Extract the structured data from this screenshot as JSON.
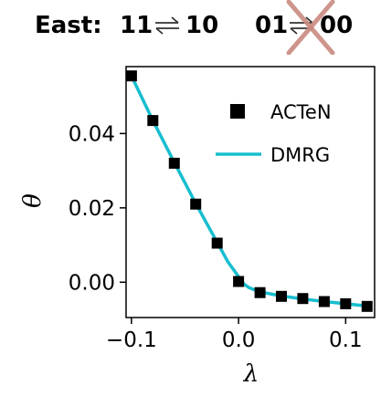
{
  "header": {
    "label": "East:",
    "state_a": "11",
    "state_b": "10",
    "state_c": "01",
    "state_d": "00",
    "arrow_icon": "exchange-arrows-icon",
    "cross_icon": "cross-out-icon",
    "cross_color": "#c98a80"
  },
  "chart_data": {
    "type": "line",
    "xlabel": "λ",
    "ylabel": "θ",
    "xlim": [
      -0.105,
      0.127
    ],
    "ylim": [
      -0.0095,
      0.058
    ],
    "xticks": [
      -0.1,
      0.0,
      0.1
    ],
    "xtick_labels": [
      "−0.1",
      "0.0",
      "0.1"
    ],
    "yticks": [
      0.0,
      0.02,
      0.04
    ],
    "ytick_labels": [
      "0.00",
      "0.02",
      "0.04"
    ],
    "legend_position": "top-right",
    "grid": false,
    "series": [
      {
        "name": "ACTeN",
        "style": "square-markers",
        "color": "#000000",
        "x": [
          -0.1,
          -0.08,
          -0.06,
          -0.04,
          -0.02,
          0.0,
          0.02,
          0.04,
          0.06,
          0.08,
          0.1,
          0.12
        ],
        "y": [
          0.0555,
          0.0435,
          0.032,
          0.021,
          0.0105,
          0.0002,
          -0.0028,
          -0.0038,
          -0.0044,
          -0.0052,
          -0.0058,
          -0.0065
        ]
      },
      {
        "name": "DMRG",
        "style": "line",
        "color": "#17becf",
        "x": [
          -0.1,
          -0.08,
          -0.06,
          -0.04,
          -0.02,
          -0.01,
          0.0,
          0.005,
          0.01,
          0.02,
          0.04,
          0.06,
          0.08,
          0.1,
          0.12
        ],
        "y": [
          0.0555,
          0.0435,
          0.0322,
          0.0212,
          0.0107,
          0.0055,
          0.0015,
          -0.0005,
          -0.0015,
          -0.0026,
          -0.0037,
          -0.0045,
          -0.0052,
          -0.0058,
          -0.0064
        ]
      }
    ]
  }
}
